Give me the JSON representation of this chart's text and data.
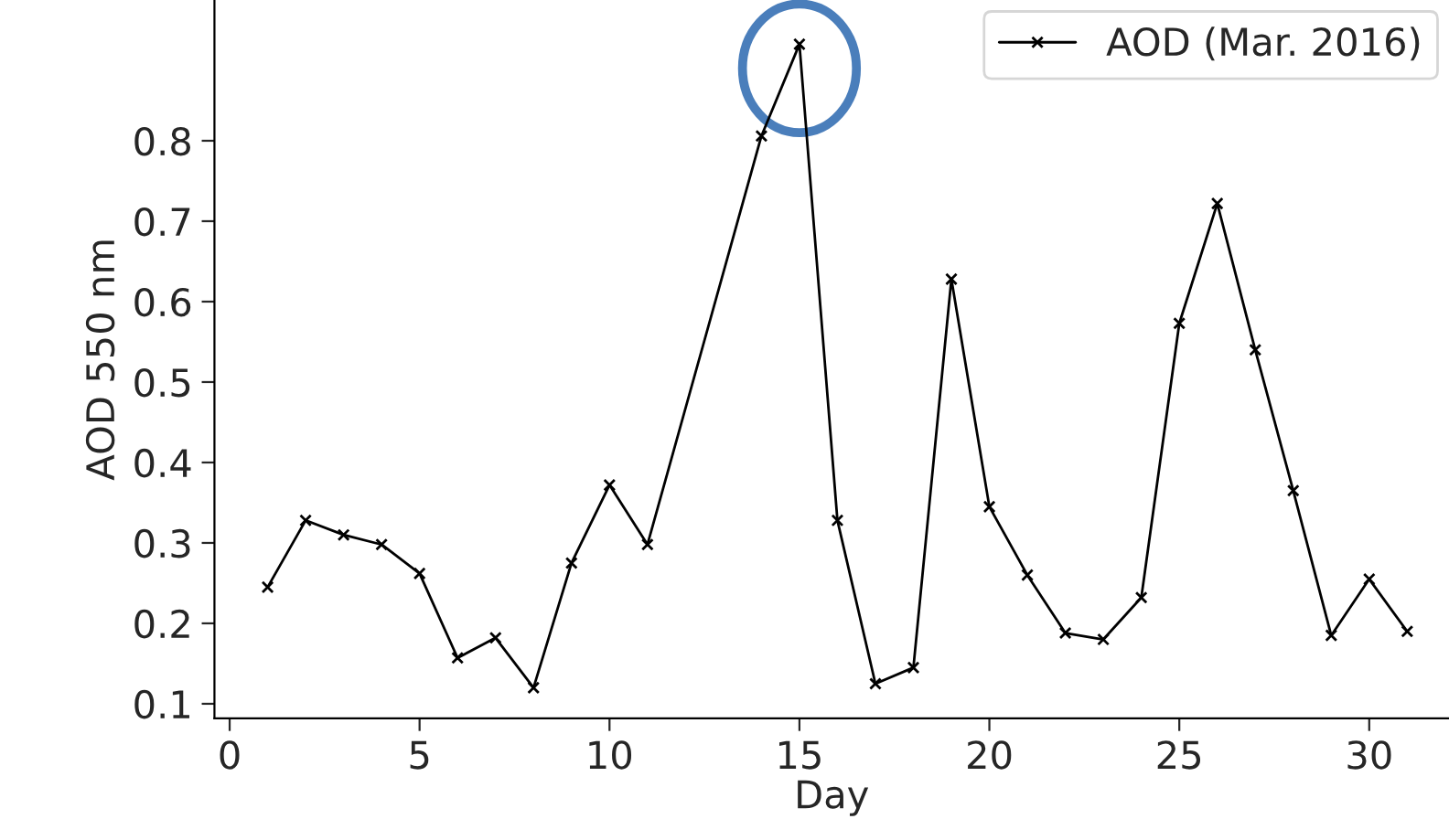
{
  "chart_data": {
    "type": "line",
    "xlabel": "Day",
    "ylabel": "AOD 550 nm",
    "x": [
      1,
      2,
      3,
      4,
      5,
      6,
      7,
      8,
      9,
      10,
      11,
      14,
      15,
      16,
      17,
      18,
      19,
      20,
      21,
      22,
      23,
      24,
      25,
      26,
      27,
      28,
      29,
      30,
      31
    ],
    "series": [
      {
        "name": "AOD (Mar. 2016)",
        "color": "#000000",
        "values": [
          0.245,
          0.328,
          0.31,
          0.298,
          0.262,
          0.157,
          0.182,
          0.12,
          0.275,
          0.372,
          0.298,
          0.806,
          0.92,
          0.328,
          0.125,
          0.145,
          0.628,
          0.345,
          0.26,
          0.188,
          0.18,
          0.232,
          0.573,
          0.722,
          0.54,
          0.365,
          0.185,
          0.255,
          0.19
        ]
      }
    ],
    "xlim": [
      -0.4,
      32.1
    ],
    "ylim": [
      0.082,
      0.975
    ],
    "xticks": [
      0,
      5,
      10,
      15,
      20,
      25,
      30
    ],
    "yticks": [
      0.1,
      0.2,
      0.3,
      0.4,
      0.5,
      0.6,
      0.7,
      0.8
    ],
    "marker": "cross",
    "line_style": "solid",
    "legend": "top right",
    "grid": false
  }
}
